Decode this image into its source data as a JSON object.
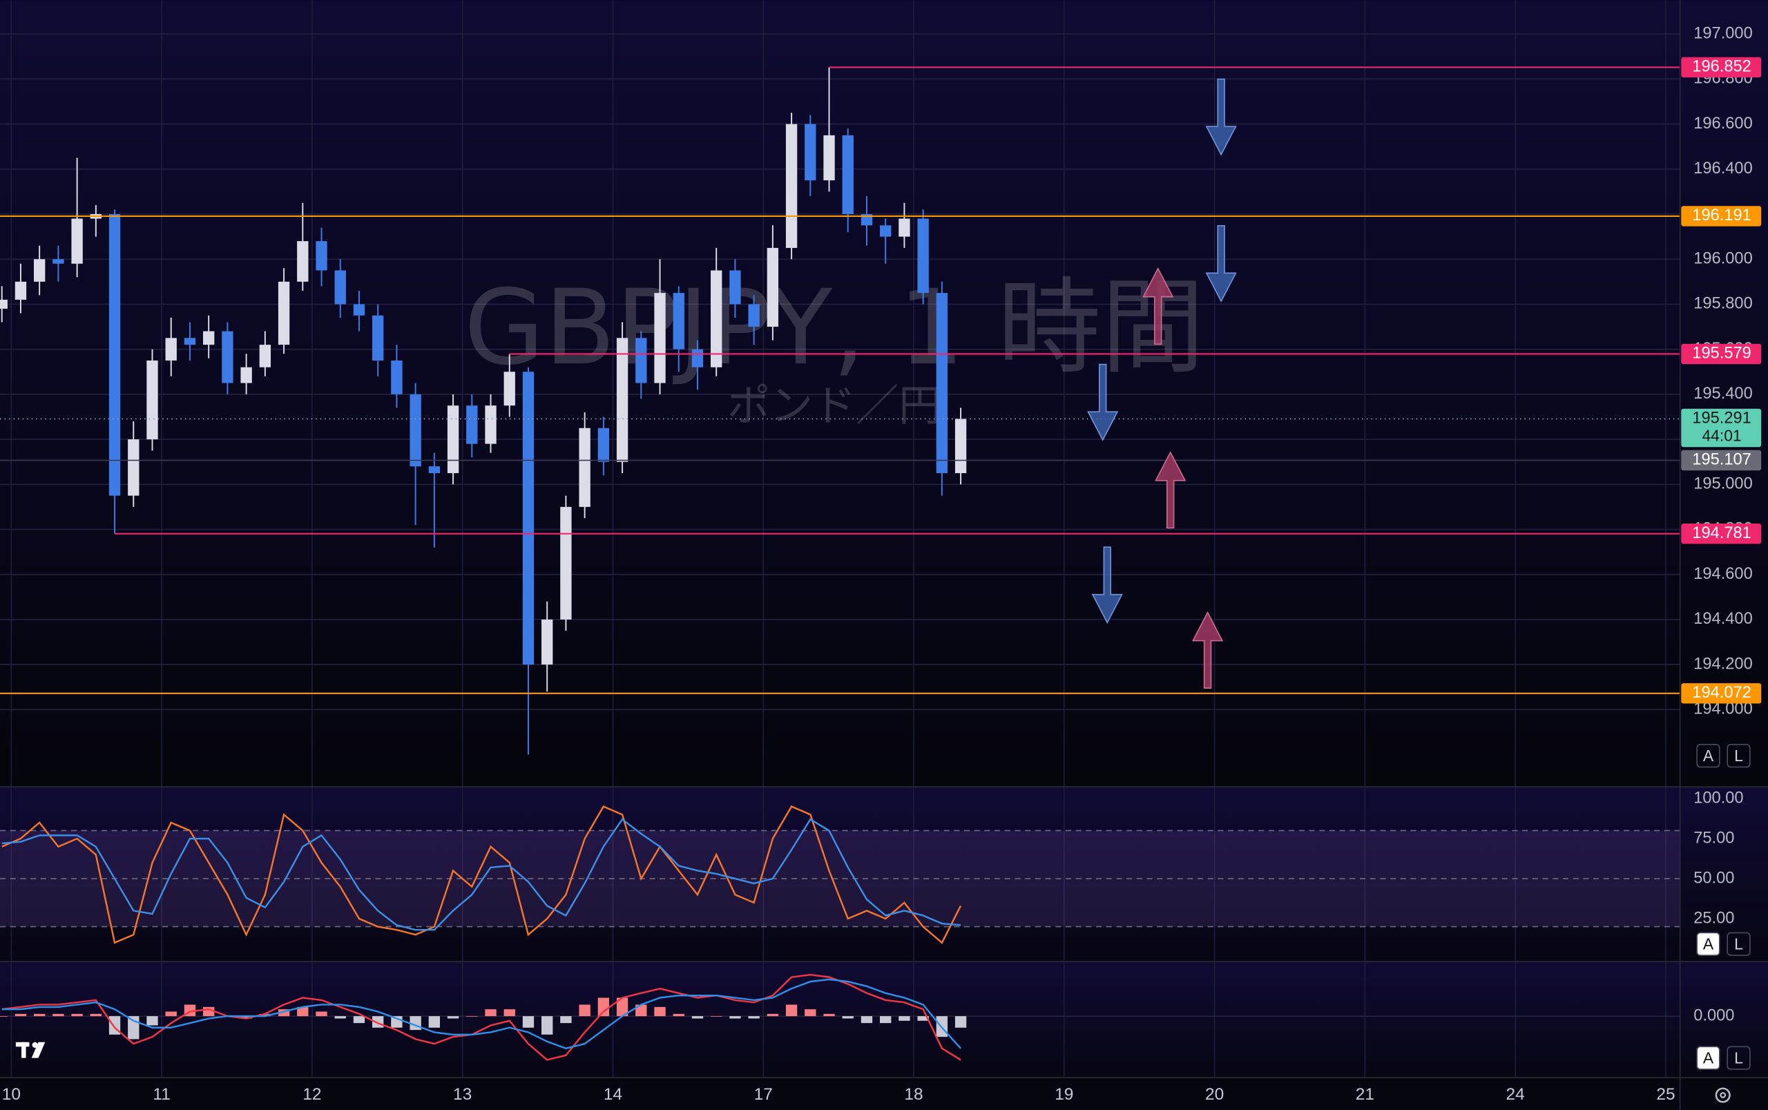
{
  "chart_data": {
    "type": "candlestick",
    "title": "GBPJPY, 1 時間",
    "subtitle": "ポンド／円",
    "up_color": "#dcdce8",
    "down_color": "#3d7be6",
    "x": [
      -0.0625,
      0.0625,
      0.1875,
      0.3125,
      0.4375,
      0.5625,
      0.6875,
      0.8125,
      0.9375,
      1.0625,
      1.1875,
      1.3125,
      1.4375,
      1.5625,
      1.6875,
      1.8125,
      1.9375,
      2.0625,
      2.1875,
      2.3125,
      2.4375,
      2.5625,
      2.6875,
      2.8125,
      2.9375,
      3.0625,
      3.1875,
      3.3125,
      3.4375,
      3.5625,
      3.6875,
      3.8125,
      3.9375,
      4.0625,
      4.1875,
      4.3125,
      4.4375,
      4.5625,
      4.6875,
      4.8125,
      4.9375,
      5.0625,
      5.1875,
      5.3125,
      5.4375,
      5.5625,
      5.6875,
      5.8125,
      5.9375,
      6.0625,
      6.1875,
      6.3125
    ],
    "open": [
      195.78,
      195.82,
      195.9,
      196,
      195.98,
      196.18,
      196.2,
      194.95,
      195.2,
      195.55,
      195.65,
      195.62,
      195.68,
      195.45,
      195.52,
      195.62,
      195.9,
      196.08,
      195.95,
      195.8,
      195.75,
      195.55,
      195.4,
      195.08,
      195.05,
      195.35,
      195.18,
      195.35,
      195.5,
      194.2,
      194.4,
      194.9,
      195.25,
      195.1,
      195.65,
      195.45,
      195.85,
      195.6,
      195.52,
      195.95,
      195.8,
      195.7,
      196.05,
      196.6,
      196.35,
      196.55,
      196.2,
      196.15,
      196.1,
      196.18,
      195.85,
      195.05
    ],
    "high": [
      195.88,
      195.98,
      196.06,
      196.06,
      196.45,
      196.24,
      196.22,
      195.28,
      195.6,
      195.74,
      195.72,
      195.75,
      195.72,
      195.58,
      195.68,
      195.96,
      196.25,
      196.14,
      196,
      195.86,
      195.8,
      195.62,
      195.45,
      195.14,
      195.4,
      195.4,
      195.4,
      195.579,
      195.52,
      194.48,
      194.95,
      195.32,
      195.3,
      195.72,
      195.68,
      196,
      195.88,
      195.64,
      196.05,
      196,
      195.84,
      196.15,
      196.65,
      196.64,
      196.852,
      196.58,
      196.28,
      196.18,
      196.25,
      196.22,
      195.9,
      195.34
    ],
    "low": [
      195.72,
      195.76,
      195.84,
      195.9,
      195.92,
      196.1,
      194.781,
      194.9,
      195.15,
      195.48,
      195.55,
      195.56,
      195.4,
      195.4,
      195.48,
      195.58,
      195.86,
      195.88,
      195.74,
      195.68,
      195.48,
      195.34,
      194.82,
      194.72,
      195,
      195.12,
      195.14,
      195.3,
      193.8,
      194.08,
      194.35,
      194.85,
      195.04,
      195.05,
      195.38,
      195.4,
      195.5,
      195.42,
      195.48,
      195.74,
      195.62,
      195.64,
      196,
      196.28,
      196.3,
      196.12,
      196.06,
      195.98,
      196.05,
      195.8,
      194.95,
      195
    ],
    "close": [
      195.82,
      195.9,
      196,
      195.98,
      196.18,
      196.2,
      194.95,
      195.2,
      195.55,
      195.65,
      195.62,
      195.68,
      195.45,
      195.52,
      195.62,
      195.9,
      196.08,
      195.95,
      195.8,
      195.75,
      195.55,
      195.4,
      195.08,
      195.05,
      195.35,
      195.18,
      195.35,
      195.5,
      194.2,
      194.4,
      194.9,
      195.25,
      195.1,
      195.65,
      195.45,
      195.85,
      195.6,
      195.52,
      195.95,
      195.8,
      195.7,
      196.05,
      196.6,
      196.35,
      196.55,
      196.2,
      196.15,
      196.1,
      196.18,
      195.85,
      195.05,
      195.291
    ],
    "xlim": [
      -0.075,
      11.095
    ],
    "xticks": [
      {
        "value": 0,
        "label": "10"
      },
      {
        "value": 1,
        "label": "11"
      },
      {
        "value": 2,
        "label": "12"
      },
      {
        "value": 3,
        "label": "13"
      },
      {
        "value": 4,
        "label": "14"
      },
      {
        "value": 5,
        "label": "17"
      },
      {
        "value": 6,
        "label": "18"
      },
      {
        "value": 7,
        "label": "19"
      },
      {
        "value": 8,
        "label": "20"
      },
      {
        "value": 9,
        "label": "21"
      },
      {
        "value": 10,
        "label": "24"
      },
      {
        "value": 11,
        "label": "25"
      }
    ],
    "ylim": [
      193.66,
      197.15
    ],
    "yticks": [
      {
        "value": 194,
        "label": "194.000"
      },
      {
        "value": 194.2,
        "label": "194.200"
      },
      {
        "value": 194.4,
        "label": "194.400"
      },
      {
        "value": 194.6,
        "label": "194.600"
      },
      {
        "value": 194.8,
        "label": "194.800"
      },
      {
        "value": 195,
        "label": "195.000"
      },
      {
        "value": 195.2,
        "label": "195.200"
      },
      {
        "value": 195.4,
        "label": "195.400"
      },
      {
        "value": 195.6,
        "label": "195.600"
      },
      {
        "value": 195.8,
        "label": "195.800"
      },
      {
        "value": 196,
        "label": "196.000"
      },
      {
        "value": 196.2,
        "label": "196.200"
      },
      {
        "value": 196.4,
        "label": "196.400"
      },
      {
        "value": 196.6,
        "label": "196.600"
      },
      {
        "value": 196.8,
        "label": "196.800"
      },
      {
        "value": 197,
        "label": "197.000"
      }
    ],
    "grid": true,
    "levels": [
      {
        "value": 196.852,
        "color": "#f0276d",
        "x_start": 5.4375
      },
      {
        "value": 196.191,
        "color": "#ff9800"
      },
      {
        "value": 195.579,
        "color": "#f0276d",
        "x_start": 3.3125
      },
      {
        "value": 194.781,
        "color": "#f0276d",
        "x_start": 0.6875
      },
      {
        "value": 194.072,
        "color": "#ff9800"
      }
    ],
    "last_price": {
      "value": 195.291,
      "countdown": "44:01",
      "color": "#5fcfb3"
    },
    "prev_price": {
      "value": 195.107,
      "color": "#6b6b78"
    },
    "indicators": [
      {
        "type": "line",
        "ylim": [
          -1.4,
          107
        ],
        "yticks": [
          {
            "value": 25,
            "label": "25.00"
          },
          {
            "value": 50,
            "label": "50.00"
          },
          {
            "value": 75,
            "label": "75.00"
          },
          {
            "value": 100,
            "label": "100.00"
          }
        ],
        "band": [
          20,
          80
        ],
        "hlines": [
          20,
          50,
          80
        ],
        "series": [
          {
            "color": "#f5762a",
            "values": [
              70,
              75,
              85,
              70,
              75,
              65,
              10,
              15,
              60,
              85,
              80,
              60,
              40,
              15,
              40,
              90,
              80,
              60,
              45,
              25,
              20,
              18,
              15,
              20,
              55,
              45,
              70,
              60,
              15,
              25,
              40,
              75,
              95,
              90,
              50,
              70,
              55,
              40,
              65,
              40,
              35,
              75,
              95,
              90,
              55,
              25,
              30,
              25,
              35,
              20,
              10,
              33
            ]
          },
          {
            "color": "#3d8fe6",
            "values": [
              72,
              73,
              77,
              77,
              77,
              70,
              50,
              30,
              28,
              53,
              75,
              75,
              60,
              38,
              32,
              48,
              70,
              77,
              62,
              43,
              30,
              21,
              18,
              18,
              30,
              40,
              57,
              58,
              48,
              33,
              27,
              47,
              70,
              87,
              78,
              70,
              58,
              55,
              53,
              50,
              47,
              50,
              68,
              87,
              80,
              57,
              37,
              27,
              30,
              27,
              22,
              21
            ]
          }
        ]
      },
      {
        "type": "macd",
        "ylim": [
          -0.265,
          0.235
        ],
        "yticks": [
          {
            "value": 0,
            "label": "0.000"
          }
        ],
        "hist_up_color": "#f77c80",
        "hist_down_color": "#c9c9d6",
        "histogram": [
          0,
          0.01,
          0.01,
          0.01,
          0.01,
          0.01,
          -0.08,
          -0.1,
          -0.04,
          0.02,
          0.05,
          0.04,
          0,
          -0.01,
          0.01,
          0.03,
          0.04,
          0.02,
          -0.01,
          -0.03,
          -0.05,
          -0.05,
          -0.06,
          -0.05,
          -0.01,
          0,
          0.03,
          0.03,
          -0.05,
          -0.08,
          -0.03,
          0.05,
          0.08,
          0.08,
          0.05,
          0.04,
          0.01,
          -0.01,
          0,
          -0.01,
          -0.01,
          0.01,
          0.05,
          0.03,
          0.01,
          -0.01,
          -0.03,
          -0.03,
          -0.02,
          -0.02,
          -0.09,
          -0.05
        ],
        "series": [
          {
            "color": "#f23645",
            "values": [
              0.03,
              0.04,
              0.05,
              0.05,
              0.06,
              0.07,
              -0.05,
              -0.12,
              -0.09,
              -0.03,
              0.02,
              0.03,
              0,
              -0.01,
              0.01,
              0.05,
              0.08,
              0.07,
              0.04,
              0.01,
              -0.03,
              -0.06,
              -0.1,
              -0.12,
              -0.09,
              -0.08,
              -0.04,
              -0.02,
              -0.12,
              -0.19,
              -0.17,
              -0.07,
              0.02,
              0.08,
              0.1,
              0.12,
              0.1,
              0.08,
              0.09,
              0.07,
              0.06,
              0.09,
              0.17,
              0.18,
              0.17,
              0.14,
              0.1,
              0.07,
              0.06,
              0.03,
              -0.14,
              -0.19
            ]
          },
          {
            "color": "#2d8fe8",
            "values": [
              0.03,
              0.03,
              0.04,
              0.04,
              0.05,
              0.06,
              0.03,
              -0.02,
              -0.05,
              -0.05,
              -0.03,
              -0.01,
              0,
              0,
              0,
              0.02,
              0.04,
              0.05,
              0.05,
              0.04,
              0.02,
              -0.01,
              -0.04,
              -0.07,
              -0.08,
              -0.08,
              -0.07,
              -0.05,
              -0.07,
              -0.11,
              -0.14,
              -0.12,
              -0.06,
              0,
              0.05,
              0.08,
              0.09,
              0.09,
              0.09,
              0.08,
              0.07,
              0.08,
              0.12,
              0.15,
              0.16,
              0.15,
              0.13,
              0.1,
              0.08,
              0.05,
              -0.05,
              -0.14
            ]
          }
        ]
      }
    ]
  },
  "ui": {
    "scale_buttons": [
      "A",
      "L"
    ]
  }
}
